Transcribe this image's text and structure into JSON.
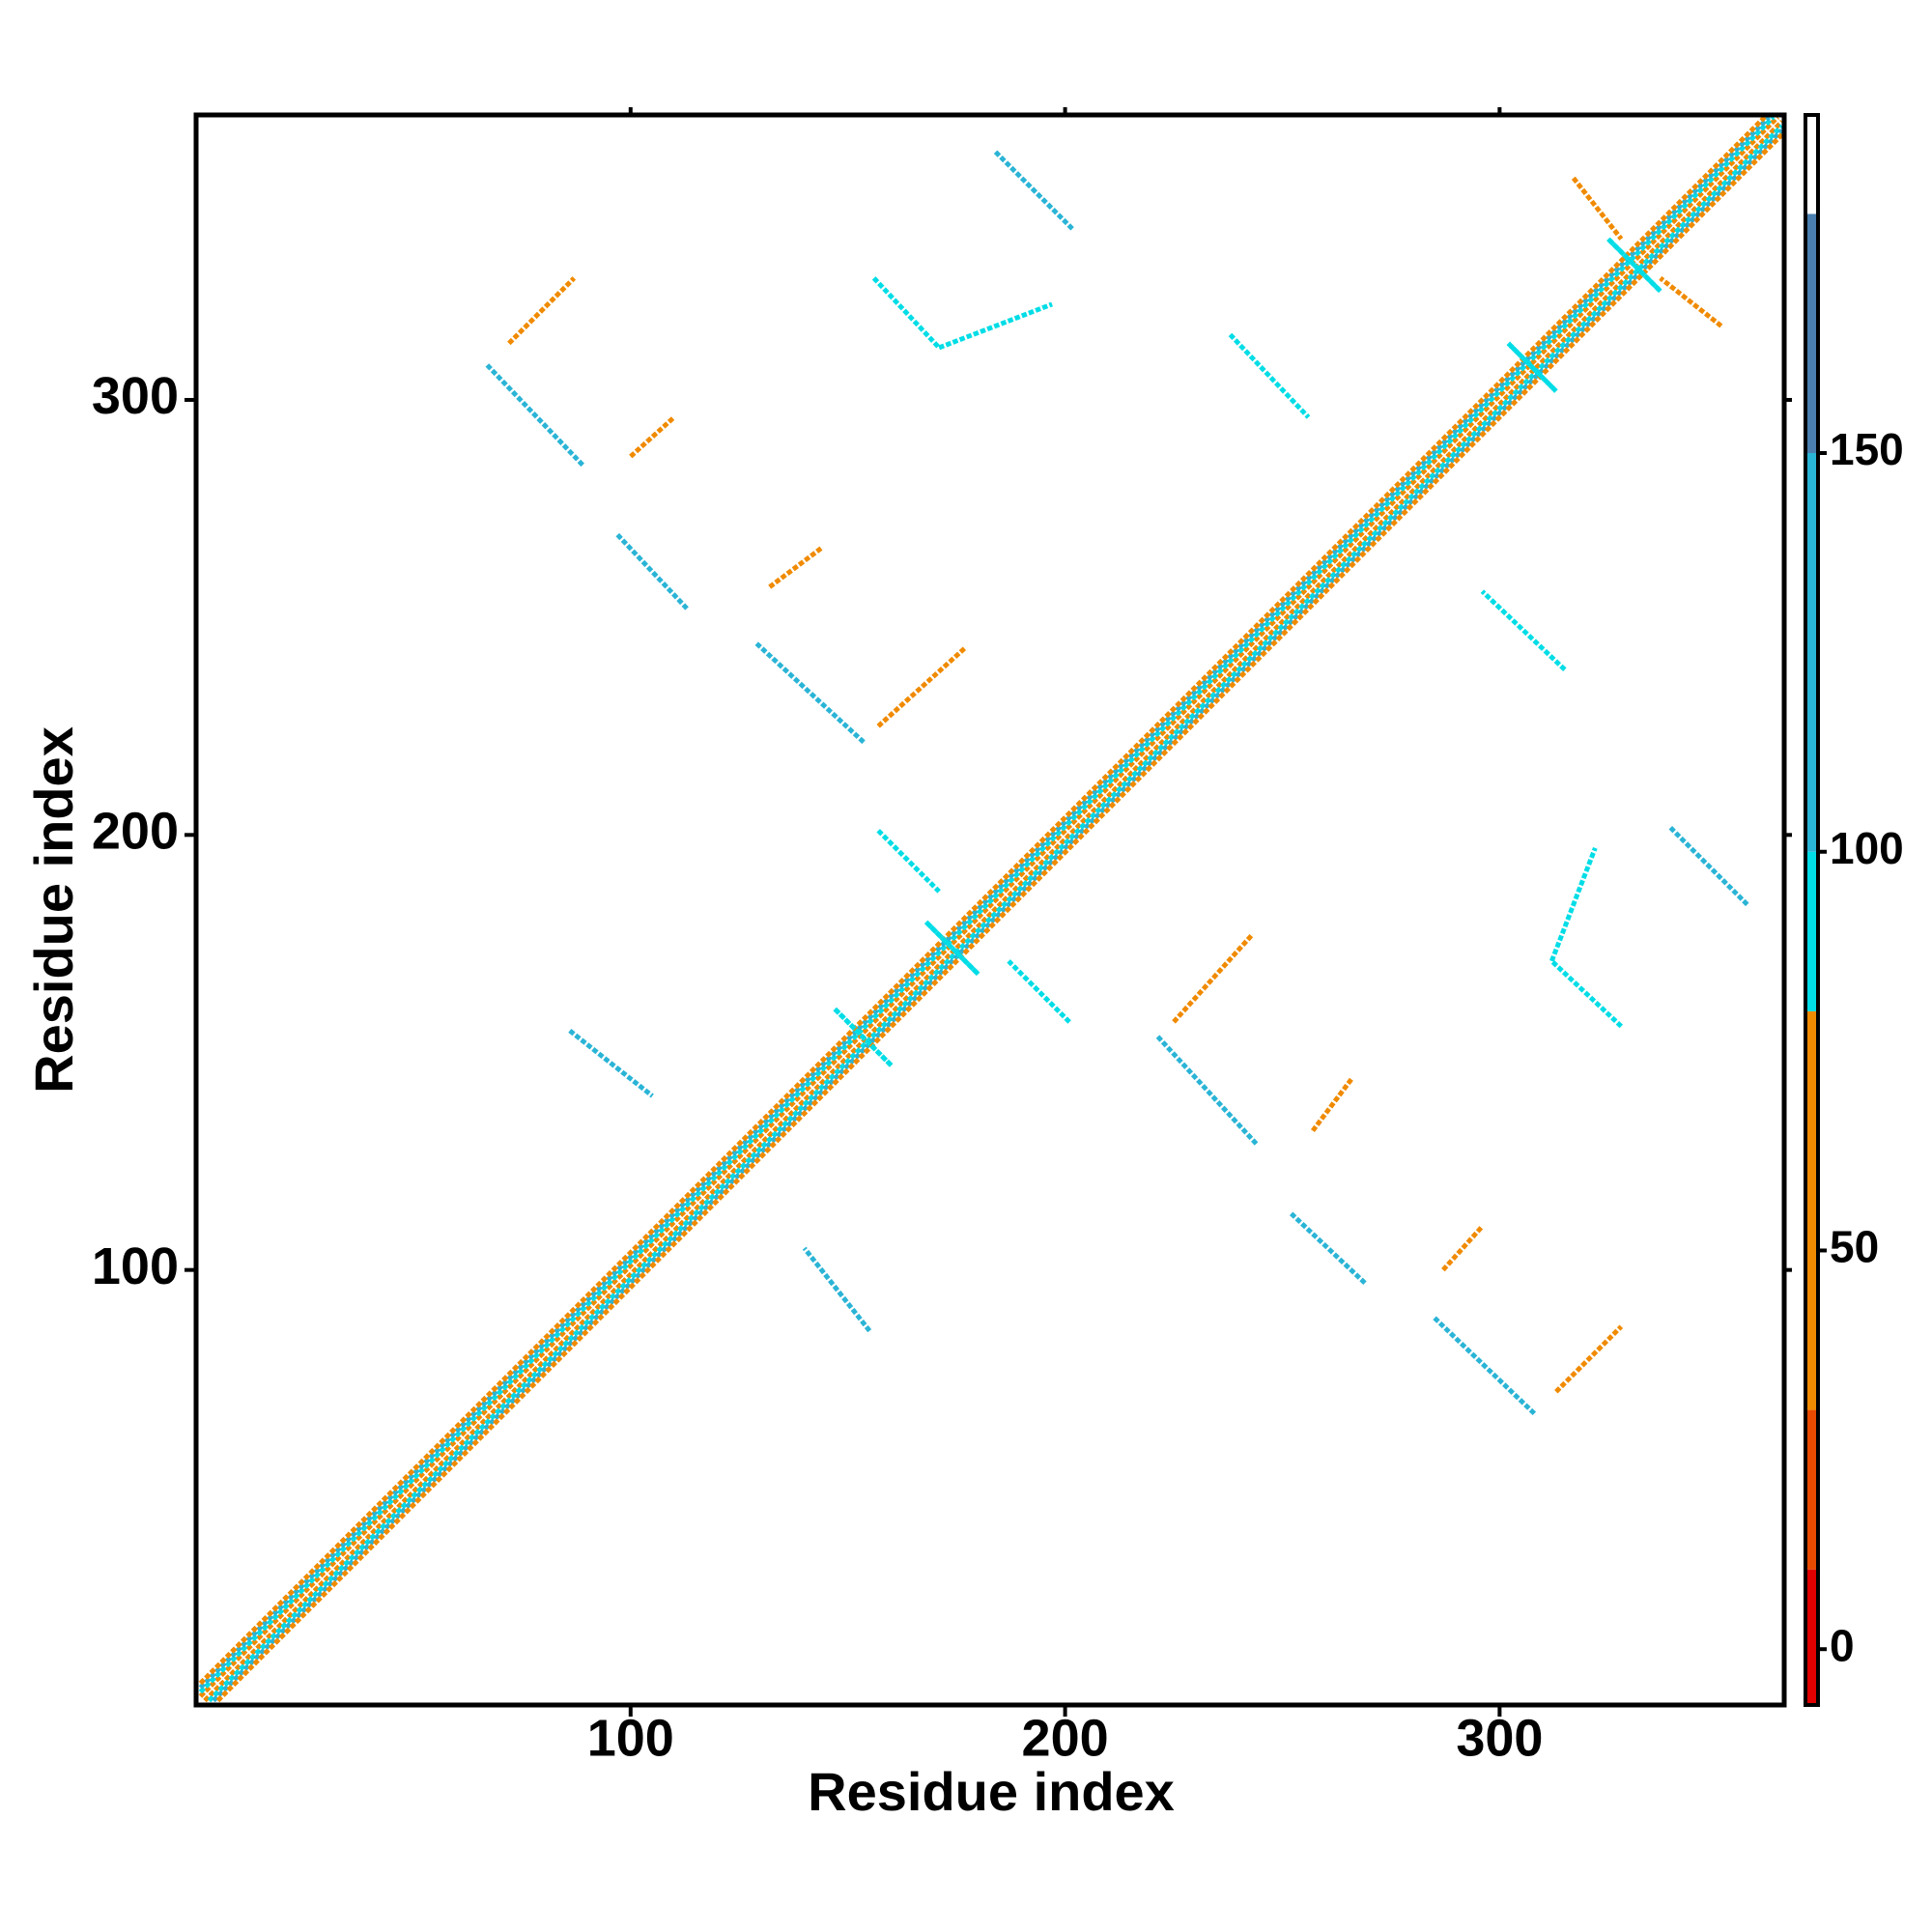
{
  "chart_data": {
    "type": "heatmap",
    "x_label": "Residue index",
    "y_label": "Residue index",
    "xlim": [
      0,
      365.5
    ],
    "ylim": [
      0,
      365.5
    ],
    "xticks": [
      100,
      200,
      300
    ],
    "yticks": [
      100,
      200,
      300
    ],
    "symmetric": true,
    "colorbar": {
      "lim": [
        -7,
        192.4
      ],
      "ticks": [
        0,
        50,
        100,
        150
      ],
      "bins": [
        -7,
        10,
        30,
        80,
        100,
        150,
        180,
        192.4
      ],
      "colors": [
        "#e00000",
        "#e84a00",
        "#f08a00",
        "#00dde6",
        "#2ab4d6",
        "#4a7fb0",
        "#ffffff"
      ]
    },
    "segments": [
      {
        "i": [
          1,
          364
        ],
        "j": [
          2,
          365
        ],
        "value": 60
      },
      {
        "i": [
          1,
          363
        ],
        "j": [
          3,
          365
        ],
        "value": 90
      },
      {
        "i": [
          1,
          362
        ],
        "j": [
          4,
          365
        ],
        "value": 120
      },
      {
        "i": [
          1,
          361
        ],
        "j": [
          5,
          365
        ],
        "value": 60
      },
      {
        "i": [
          184,
          202
        ],
        "j": [
          357,
          339
        ],
        "value": 100
      },
      {
        "i": [
          67,
          89
        ],
        "j": [
          308,
          285
        ],
        "value": 120
      },
      {
        "i": [
          72,
          87
        ],
        "j": [
          313,
          328
        ],
        "value": 60
      },
      {
        "i": [
          100,
          110
        ],
        "j": [
          287,
          296
        ],
        "value": 60
      },
      {
        "i": [
          156,
          171
        ],
        "j": [
          328,
          312
        ],
        "value": 95
      },
      {
        "i": [
          171,
          197
        ],
        "j": [
          312,
          322
        ],
        "value": 90
      },
      {
        "i": [
          238,
          256
        ],
        "j": [
          315,
          296
        ],
        "value": 90
      },
      {
        "i": [
          97,
          113
        ],
        "j": [
          269,
          252
        ],
        "value": 110
      },
      {
        "i": [
          132,
          144
        ],
        "j": [
          257,
          266
        ],
        "value": 55
      },
      {
        "i": [
          129,
          154
        ],
        "j": [
          244,
          221
        ],
        "value": 115
      },
      {
        "i": [
          157,
          177
        ],
        "j": [
          225,
          243
        ],
        "value": 50
      },
      {
        "i": [
          317,
          328
        ],
        "j": [
          351,
          337
        ],
        "value": 60
      },
      {
        "i": [
          157,
          171
        ],
        "j": [
          201,
          187
        ],
        "value": 95
      },
      {
        "i": [
          86,
          105
        ],
        "j": [
          155,
          140
        ],
        "value": 100
      },
      {
        "i": [
          168,
          180
        ],
        "j": [
          180,
          168
        ],
        "value": 95
      },
      {
        "i": [
          147,
          160
        ],
        "j": [
          160,
          147
        ],
        "value": 95
      },
      {
        "i": [
          325,
          337
        ],
        "j": [
          337,
          325
        ],
        "value": 95
      },
      {
        "i": [
          302,
          313
        ],
        "j": [
          313,
          302
        ],
        "value": 95
      }
    ]
  }
}
